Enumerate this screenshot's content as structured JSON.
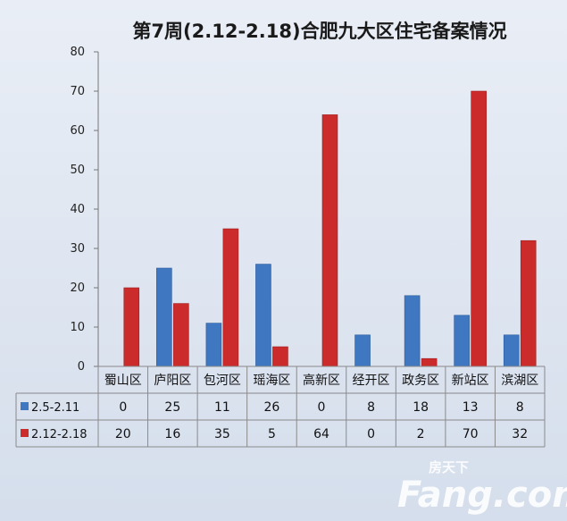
{
  "chart_data": {
    "type": "bar",
    "title": "第7周(2.12-2.18)合肥九大区住宅备案情况",
    "categories": [
      "蜀山区",
      "庐阳区",
      "包河区",
      "瑶海区",
      "高新区",
      "经开区",
      "政务区",
      "新站区",
      "滨湖区"
    ],
    "series": [
      {
        "name": "2.5-2.11",
        "color": "#3f78c1",
        "values": [
          0,
          25,
          11,
          26,
          0,
          8,
          18,
          13,
          8
        ]
      },
      {
        "name": "2.12-2.18",
        "color": "#cc2b2b",
        "values": [
          20,
          16,
          35,
          5,
          64,
          0,
          2,
          70,
          32
        ]
      }
    ],
    "ylim": [
      0,
      80
    ],
    "yticks": [
      0,
      10,
      20,
      30,
      40,
      50,
      60,
      70,
      80
    ],
    "grid": false,
    "legend": "data-table-left"
  },
  "watermark": {
    "top": "房天下",
    "main": "Fang.com"
  }
}
